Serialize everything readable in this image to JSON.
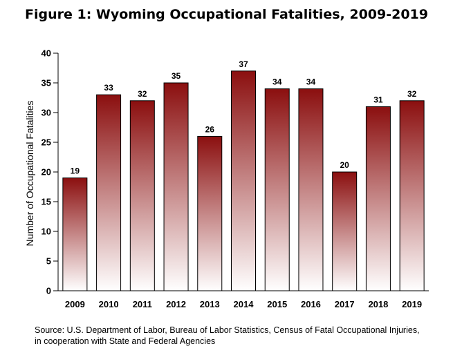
{
  "chart_data": {
    "type": "bar",
    "title": "Figure 1: Wyoming Occupational Fatalities, 2009-2019",
    "xlabel": "",
    "ylabel": "Number of Occupational Fatalities",
    "categories": [
      "2009",
      "2010",
      "2011",
      "2012",
      "2013",
      "2014",
      "2015",
      "2016",
      "2017",
      "2018",
      "2019"
    ],
    "values": [
      19,
      33,
      32,
      35,
      26,
      37,
      34,
      34,
      20,
      31,
      32
    ],
    "ylim": [
      0,
      40
    ],
    "yticks": [
      0,
      5,
      10,
      15,
      20,
      25,
      30,
      35,
      40
    ],
    "grid": false,
    "legend": "none",
    "bar_color_top": "#8b0f0f",
    "bar_color_bottom": "#ffffff",
    "data_labels": true
  },
  "source": {
    "line1": "Source: U.S. Department of Labor, Bureau of Labor Statistics, Census of Fatal Occupational Injuries,",
    "line2": "in cooperation with State and Federal Agencies"
  }
}
